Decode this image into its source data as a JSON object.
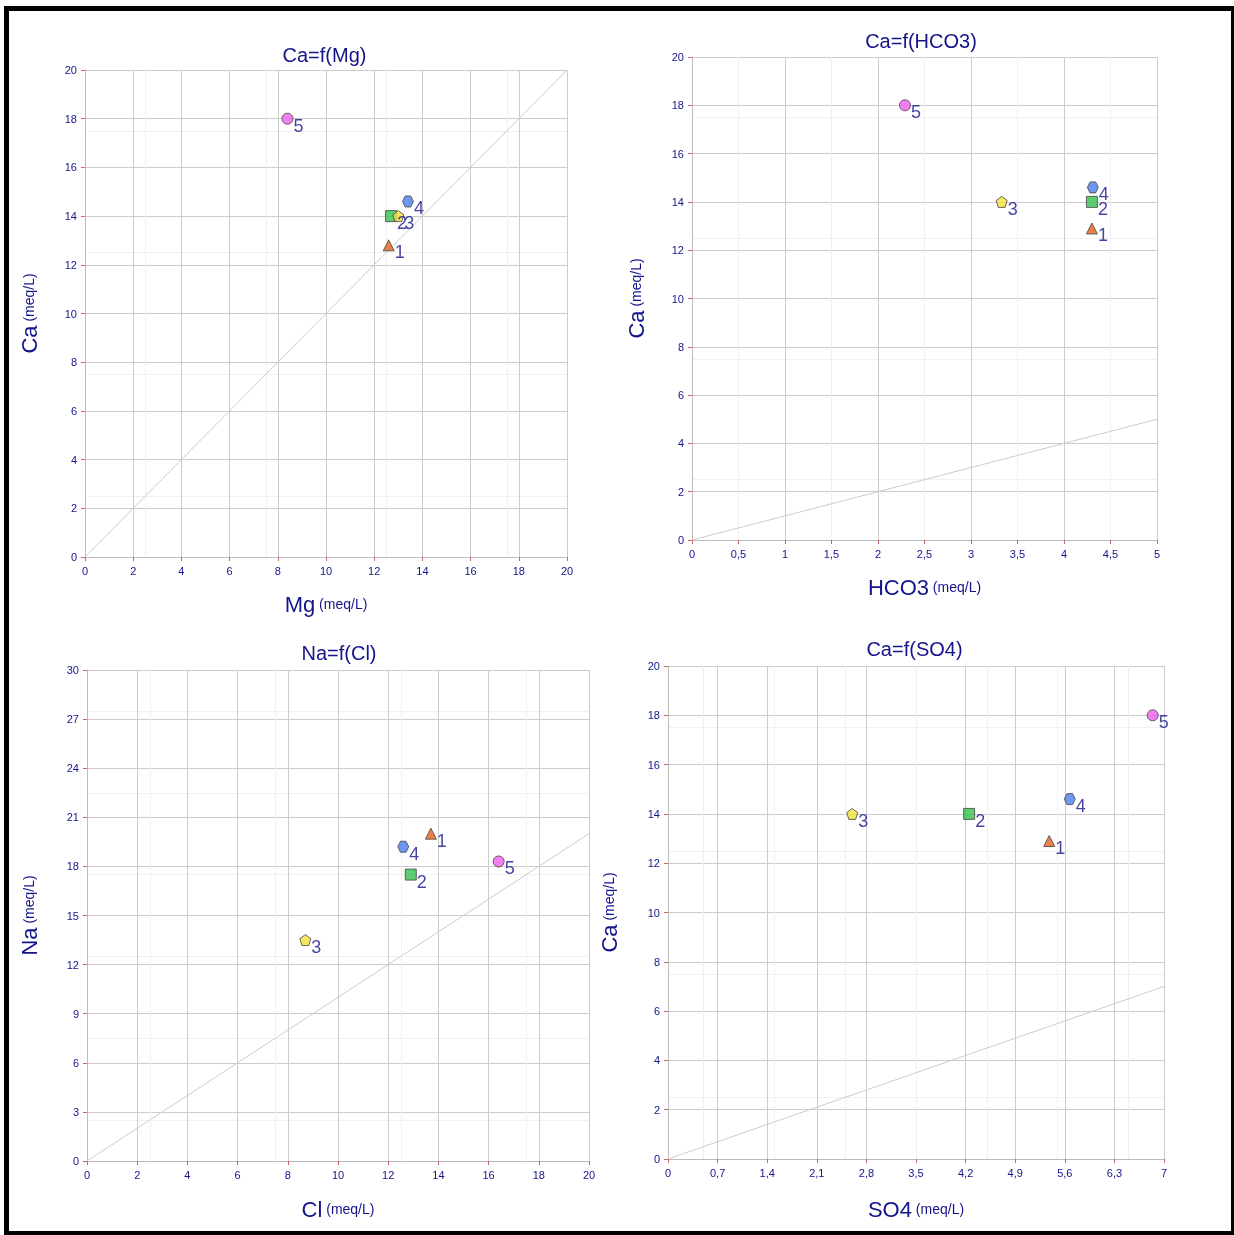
{
  "chart_data": [
    {
      "type": "scatter",
      "title": "Ca=f(Mg)",
      "xlabel": "Mg (meq/L)",
      "ylabel": "Ca (meq/L)",
      "xlim": [
        0,
        20
      ],
      "ylim": [
        0,
        20
      ],
      "xticks": [
        0,
        2,
        4,
        6,
        8,
        10,
        12,
        14,
        16,
        18,
        20
      ],
      "yticks": [
        0,
        2,
        4,
        6,
        8,
        10,
        12,
        14,
        16,
        18,
        20
      ],
      "grid": true,
      "series": [
        {
          "type": "line",
          "color": "#cccccc",
          "x": [
            0,
            20
          ],
          "values": [
            0,
            20
          ],
          "marker": "none"
        },
        {
          "name": "1",
          "color": "#e8601c",
          "marker": "triangle",
          "x": [
            12.6
          ],
          "values": [
            12.8
          ]
        },
        {
          "name": "2",
          "color": "#33c24d",
          "marker": "square",
          "x": [
            12.7
          ],
          "values": [
            14.0
          ]
        },
        {
          "name": "3",
          "color": "#f5e03a",
          "x": [
            13.0
          ],
          "values": [
            14.0
          ]
        },
        {
          "name": "4",
          "color": "#4a7cf0",
          "x": [
            13.4
          ],
          "values": [
            14.6
          ]
        },
        {
          "name": "5",
          "color": "#f060f0",
          "marker": "circle",
          "x": [
            8.4
          ],
          "values": [
            18.0
          ]
        }
      ]
    },
    {
      "type": "scatter",
      "title": "Ca=f(HCO3)",
      "xlabel": "HCO3 (meq/L)",
      "ylabel": "Ca (meq/L)",
      "xlim": [
        0,
        5
      ],
      "ylim": [
        0,
        20
      ],
      "xticks": [
        0,
        {
          "value": 0.5,
          "label": "0,5"
        },
        1,
        {
          "value": 1.5,
          "label": "1,5"
        },
        2,
        {
          "value": 2.5,
          "label": "2,5"
        },
        3,
        {
          "value": 3.5,
          "label": "3,5"
        },
        4,
        {
          "value": 4.5,
          "label": "4,5"
        },
        5
      ],
      "yticks": [
        0,
        2,
        4,
        6,
        8,
        10,
        12,
        14,
        16,
        18,
        20
      ],
      "grid": true,
      "series": [
        {
          "type": "line",
          "color": "#cccccc",
          "x": [
            0,
            5
          ],
          "values": [
            0,
            5
          ],
          "marker": "none"
        },
        {
          "name": "1",
          "color": "#e8601c",
          "marker": "triangle",
          "x": [
            4.3
          ],
          "values": [
            12.9
          ]
        },
        {
          "name": "2",
          "color": "#33c24d",
          "marker": "square",
          "x": [
            4.3
          ],
          "values": [
            14.0
          ]
        },
        {
          "name": "3",
          "color": "#f5e03a",
          "x": [
            3.33
          ],
          "values": [
            14.0
          ]
        },
        {
          "name": "4",
          "color": "#4a7cf0",
          "x": [
            4.31
          ],
          "values": [
            14.6
          ]
        },
        {
          "name": "5",
          "color": "#f060f0",
          "marker": "circle",
          "x": [
            2.29
          ],
          "values": [
            18.0
          ]
        }
      ]
    },
    {
      "type": "scatter",
      "title": "Na=f(Cl)",
      "xlabel": "Cl (meq/L)",
      "ylabel": "Na (meq/L)",
      "xlim": [
        0,
        20
      ],
      "ylim": [
        0,
        30
      ],
      "xticks": [
        0,
        2,
        4,
        6,
        8,
        10,
        12,
        14,
        16,
        18,
        20
      ],
      "yticks": [
        0,
        3,
        6,
        9,
        12,
        15,
        18,
        21,
        24,
        27,
        30
      ],
      "grid": true,
      "series": [
        {
          "type": "line",
          "color": "#cccccc",
          "x": [
            0,
            20
          ],
          "values": [
            0,
            20
          ],
          "marker": "none"
        },
        {
          "name": "1",
          "color": "#e8601c",
          "marker": "triangle",
          "x": [
            13.7
          ],
          "values": [
            20.0
          ]
        },
        {
          "name": "2",
          "color": "#33c24d",
          "marker": "square",
          "x": [
            12.9
          ],
          "values": [
            17.5
          ]
        },
        {
          "name": "3",
          "color": "#f5e03a",
          "x": [
            8.7
          ],
          "values": [
            13.5
          ]
        },
        {
          "name": "4",
          "color": "#4a7cf0",
          "x": [
            12.6
          ],
          "values": [
            19.2
          ]
        },
        {
          "name": "5",
          "color": "#f060f0",
          "marker": "circle",
          "x": [
            16.4
          ],
          "values": [
            18.3
          ]
        }
      ]
    },
    {
      "type": "scatter",
      "title": "Ca=f(SO4)",
      "xlabel": "SO4 (meq/L)",
      "ylabel": "Ca (meq/L)",
      "xlim": [
        0,
        7
      ],
      "ylim": [
        0,
        20
      ],
      "xticks": [
        0,
        {
          "value": 0.7,
          "label": "0,7"
        },
        {
          "value": 1.4,
          "label": "1,4"
        },
        {
          "value": 2.1,
          "label": "2,1"
        },
        {
          "value": 2.8,
          "label": "2,8"
        },
        {
          "value": 3.5,
          "label": "3,5"
        },
        {
          "value": 4.2,
          "label": "4,2"
        },
        {
          "value": 4.9,
          "label": "4,9"
        },
        {
          "value": 5.6,
          "label": "5,6"
        },
        {
          "value": 6.3,
          "label": "6,3"
        },
        7
      ],
      "yticks": [
        0,
        2,
        4,
        6,
        8,
        10,
        12,
        14,
        16,
        18,
        20
      ],
      "grid": true,
      "series": [
        {
          "type": "line",
          "color": "#cccccc",
          "x": [
            0,
            7
          ],
          "values": [
            0,
            7
          ],
          "marker": "none"
        },
        {
          "name": "1",
          "color": "#e8601c",
          "marker": "triangle",
          "x": [
            5.38
          ],
          "values": [
            12.9
          ]
        },
        {
          "name": "2",
          "color": "#33c24d",
          "marker": "square",
          "x": [
            4.25
          ],
          "values": [
            14.0
          ]
        },
        {
          "name": "3",
          "color": "#f5e03a",
          "x": [
            2.6
          ],
          "values": [
            14.0
          ]
        },
        {
          "name": "4",
          "color": "#4a7cf0",
          "x": [
            5.67
          ],
          "values": [
            14.6
          ]
        },
        {
          "name": "5",
          "color": "#f060f0",
          "marker": "circle",
          "x": [
            6.84
          ],
          "values": [
            18.0
          ]
        }
      ]
    }
  ]
}
